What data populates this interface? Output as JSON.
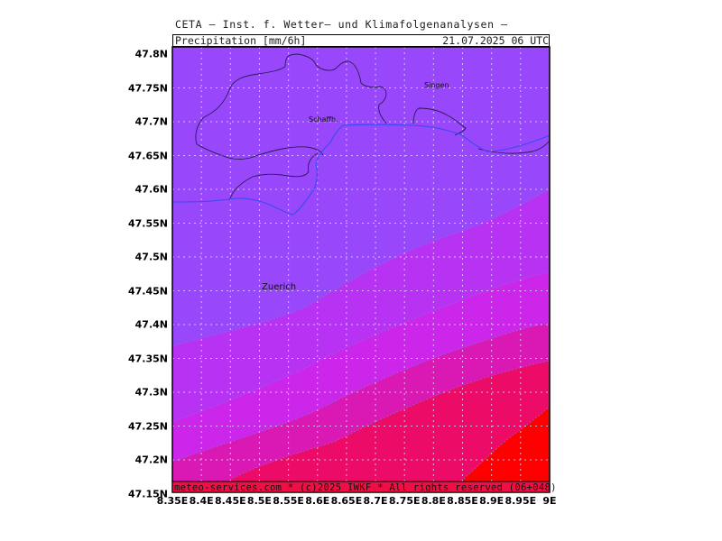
{
  "header": {
    "title": "CETA – Inst. f. Wetter– und Klimafolgenanalysen –",
    "field_label": "Precipitation_[mm/6h]",
    "valid_time": "21.07.2025 06 UTC"
  },
  "footer": "meteo-services.com * (c)2025 IWKF * All rights reserved (06+048)",
  "axes": {
    "y_ticks": [
      "47.8N",
      "47.75N",
      "47.7N",
      "47.65N",
      "47.6N",
      "47.55N",
      "47.5N",
      "47.45N",
      "47.4N",
      "47.35N",
      "47.3N",
      "47.25N",
      "47.2N",
      "47.15N"
    ],
    "x_ticks": [
      "8.35E",
      "8.4E",
      "8.45E",
      "8.5E",
      "8.55E",
      "8.6E",
      "8.65E",
      "8.7E",
      "8.75E",
      "8.8E",
      "8.85E",
      "8.9E",
      "8.95E",
      "9E"
    ]
  },
  "places": {
    "singen": "Singen",
    "schaffh": "Schaffh.",
    "zuerich": "Zuerich"
  },
  "colors": {
    "band1": "#9848fa",
    "band2": "#b832f4",
    "band3": "#cc26ea",
    "band4": "#da18b4",
    "band5": "#ec0c68",
    "band6": "#ff0000",
    "footer_bar": "#ee1045"
  }
}
